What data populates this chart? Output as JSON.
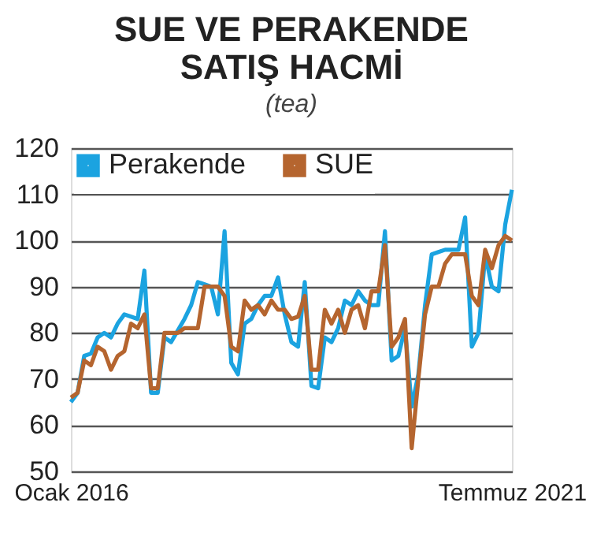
{
  "chart_data": {
    "type": "line",
    "title": "SUE VE PERAKENDE SATIŞ HACMİ",
    "subtitle": "(tea)",
    "categories": [
      "Ocak 2016",
      null,
      null,
      null,
      null,
      null,
      null,
      null,
      null,
      null,
      null,
      null,
      null,
      null,
      null,
      null,
      null,
      null,
      null,
      null,
      null,
      null,
      null,
      null,
      null,
      null,
      null,
      null,
      null,
      null,
      null,
      null,
      null,
      null,
      null,
      null,
      null,
      null,
      null,
      null,
      null,
      null,
      null,
      null,
      null,
      null,
      null,
      null,
      null,
      null,
      null,
      null,
      null,
      null,
      null,
      null,
      null,
      null,
      null,
      null,
      null,
      null,
      null,
      null,
      null,
      null,
      "Temmuz 2021"
    ],
    "series": [
      {
        "name": "Perakende",
        "color": "#1ba3e0",
        "values": [
          65,
          67,
          75,
          75.5,
          79,
          80,
          79,
          82,
          84,
          83.5,
          83,
          93.5,
          67,
          67,
          79,
          78,
          80.5,
          83,
          86,
          91,
          90.5,
          90,
          84,
          102,
          73.5,
          71,
          82,
          83,
          86,
          88,
          88,
          92,
          84,
          78,
          77,
          91,
          68.5,
          68,
          79,
          78,
          81,
          87,
          86,
          89,
          87,
          86,
          86,
          102,
          74,
          75,
          81,
          64,
          71,
          86,
          97,
          97.5,
          98,
          98,
          98,
          105,
          77,
          80,
          97,
          90,
          89,
          103.5,
          111
        ]
      },
      {
        "name": "SUE",
        "color": "#b5652f",
        "values": [
          66,
          67,
          74,
          73,
          77,
          76,
          72,
          75,
          76,
          82,
          81,
          84,
          68,
          68,
          80,
          80,
          80,
          81,
          81,
          81,
          90,
          90,
          90,
          88,
          77,
          76,
          87,
          85,
          86,
          84,
          87,
          85,
          85,
          83,
          83.5,
          88,
          72,
          72,
          85,
          82,
          85,
          80,
          85,
          86,
          81,
          89,
          89,
          99,
          77,
          79,
          83,
          55,
          70,
          84,
          90,
          90,
          95,
          97,
          97,
          97,
          88,
          86,
          98,
          94,
          99,
          101,
          100
        ]
      }
    ],
    "ylim": [
      50,
      120
    ],
    "yticks": [
      50,
      60,
      70,
      80,
      90,
      100,
      110,
      120
    ],
    "grid": "y",
    "legend": "top left",
    "marker": "none",
    "line_style": "solid"
  }
}
